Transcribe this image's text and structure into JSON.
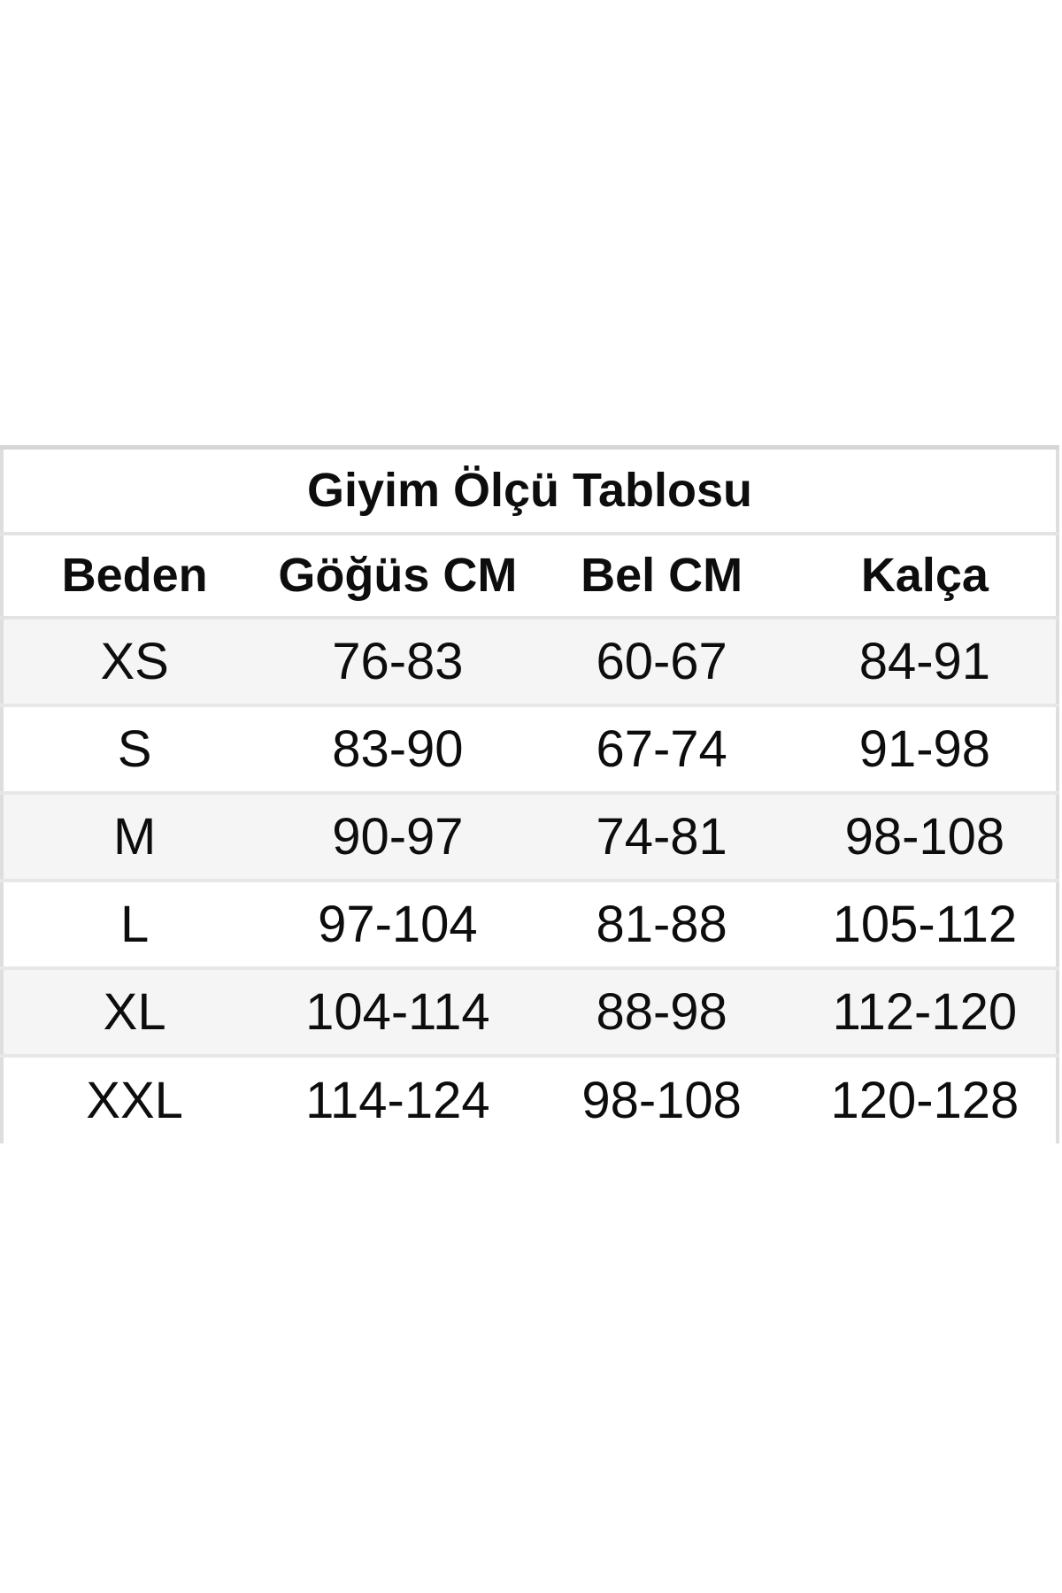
{
  "page": {
    "background_color": "#ffffff"
  },
  "style": {
    "stripe_row_background": "#f5f5f5",
    "row_border_color": "#e3e3e3",
    "outer_border_color": "#d6d6d6",
    "text_color": "#0d0d0d"
  },
  "chart_data": {
    "type": "table",
    "title": "Giyim Ölçü Tablosu",
    "columns": [
      "Beden",
      "Göğüs CM",
      "Bel CM",
      "Kalça"
    ],
    "rows": [
      [
        "XS",
        "76-83",
        "60-67",
        "84-91"
      ],
      [
        "S",
        "83-90",
        "67-74",
        "91-98"
      ],
      [
        "M",
        "90-97",
        "74-81",
        "98-108"
      ],
      [
        "L",
        "97-104",
        "81-88",
        "105-112"
      ],
      [
        "XL",
        "104-114",
        "88-98",
        "112-120"
      ],
      [
        "XXL",
        "114-124",
        "98-108",
        "120-128"
      ]
    ],
    "layout": {
      "striped_rows": [
        "XS",
        "M",
        "XL"
      ],
      "columns_equal_width": true,
      "text_alignment": "center"
    }
  }
}
